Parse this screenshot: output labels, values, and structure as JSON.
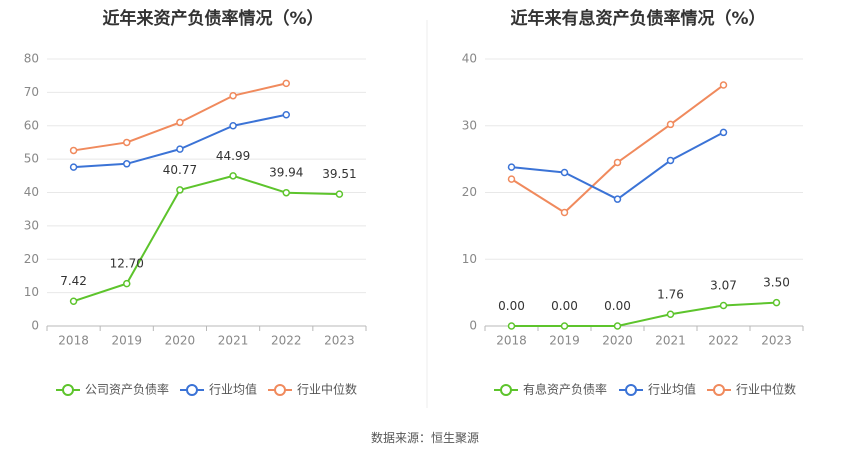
{
  "source": "数据来源：恒生聚源",
  "colors": {
    "company": "#5dc42c",
    "avg": "#3b73d6",
    "median": "#f08a5d"
  },
  "chart_data": [
    {
      "type": "line",
      "title": "近年来资产负债率情况（%）",
      "categories": [
        "2018",
        "2019",
        "2020",
        "2021",
        "2022",
        "2023"
      ],
      "ylim": [
        0,
        80
      ],
      "yticks": [
        0,
        10,
        20,
        30,
        40,
        50,
        60,
        70,
        80
      ],
      "grid": true,
      "legend_position": "bottom",
      "series": [
        {
          "name": "公司资产负债率",
          "color_key": "company",
          "values": [
            7.42,
            12.7,
            40.77,
            44.99,
            39.94,
            39.51
          ],
          "labels": [
            "7.42",
            "12.70",
            "40.77",
            "44.99",
            "39.94",
            "39.51"
          ]
        },
        {
          "name": "行业均值",
          "color_key": "avg",
          "values": [
            47.6,
            48.6,
            53.0,
            60.0,
            63.3,
            null
          ]
        },
        {
          "name": "行业中位数",
          "color_key": "median",
          "values": [
            52.6,
            55.0,
            61.0,
            69.0,
            72.7,
            null
          ]
        }
      ]
    },
    {
      "type": "line",
      "title": "近年来有息资产负债率情况（%）",
      "categories": [
        "2018",
        "2019",
        "2020",
        "2021",
        "2022",
        "2023"
      ],
      "ylim": [
        0,
        40
      ],
      "yticks": [
        0,
        10,
        20,
        30,
        40
      ],
      "grid": true,
      "legend_position": "bottom",
      "series": [
        {
          "name": "有息资产负债率",
          "color_key": "company",
          "values": [
            0.0,
            0.0,
            0.0,
            1.76,
            3.07,
            3.5
          ],
          "labels": [
            "0.00",
            "0.00",
            "0.00",
            "1.76",
            "3.07",
            "3.50"
          ]
        },
        {
          "name": "行业均值",
          "color_key": "avg",
          "values": [
            23.8,
            23.0,
            19.0,
            24.8,
            29.0,
            null
          ]
        },
        {
          "name": "行业中位数",
          "color_key": "median",
          "values": [
            22.0,
            17.0,
            24.5,
            30.2,
            36.1,
            null
          ]
        }
      ]
    }
  ]
}
